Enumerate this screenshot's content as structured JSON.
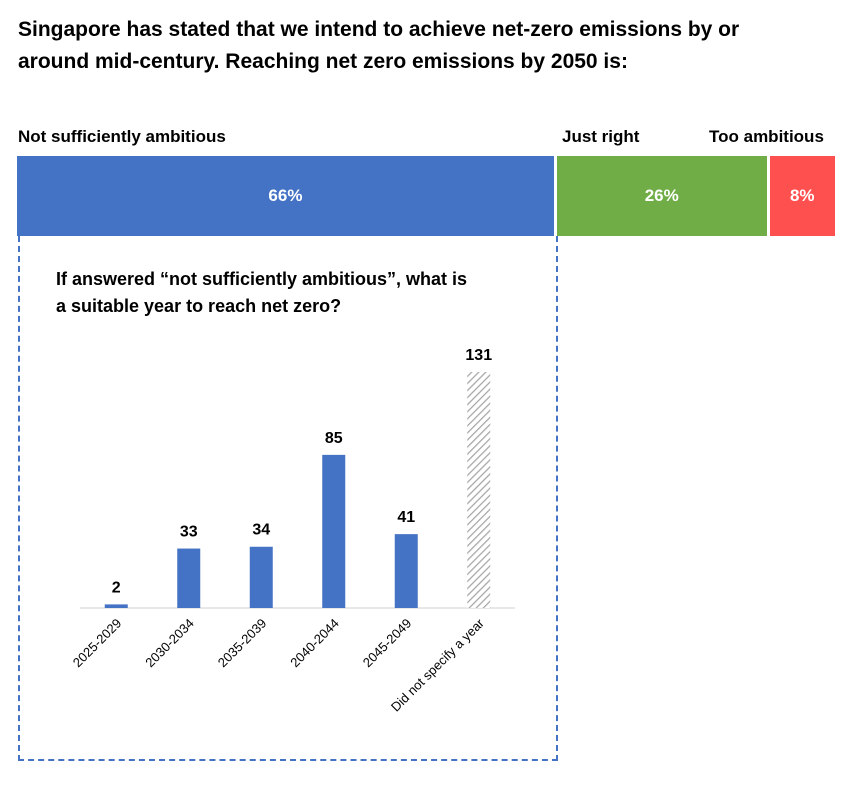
{
  "question": {
    "line1": "Singapore has stated that we intend to achieve net-zero emissions by or",
    "line2": "around mid-century. Reaching net zero emissions by 2050 is:"
  },
  "stacked": {
    "segments": [
      {
        "label": "Not sufficiently ambitious",
        "value": 66,
        "value_text": "66%",
        "color": "#4472c4"
      },
      {
        "label": "Just right",
        "value": 26,
        "value_text": "26%",
        "color": "#70ad47"
      },
      {
        "label": "Too ambitious",
        "value": 8,
        "value_text": "8%",
        "color": "#ff5050"
      }
    ]
  },
  "callout": {
    "title_line1": "If answered “not sufficiently ambitious”, what is",
    "title_line2": "a suitable year to reach net zero?"
  },
  "chart_data": {
    "type": "bar",
    "categories": [
      "2025-2029",
      "2030-2034",
      "2035-2039",
      "2040-2044",
      "2045-2049",
      "Did not specify a year"
    ],
    "values": [
      2,
      33,
      34,
      85,
      41,
      131
    ],
    "data_labels": [
      "2",
      "33",
      "34",
      "85",
      "41",
      "131"
    ],
    "ylim": [
      0,
      131
    ],
    "grid": false,
    "bar_color": "#4472c4",
    "hatched_category": "Did not specify a year",
    "hatch_color": "#a6a6a6"
  }
}
